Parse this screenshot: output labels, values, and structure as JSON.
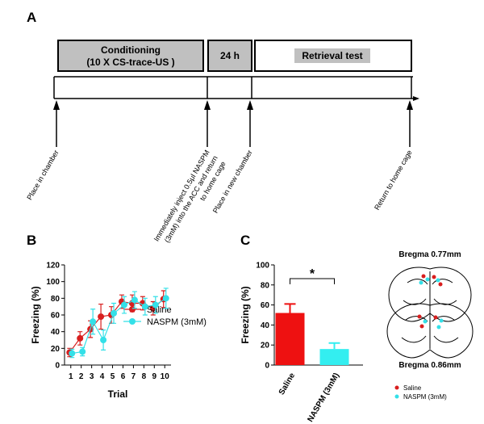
{
  "panel_labels": [
    "A",
    "B",
    "C"
  ],
  "timeline": {
    "blocks": [
      [
        "Conditioning",
        "(10 X CS-trace-US )"
      ],
      [
        "24 h"
      ],
      [
        "Retrieval test"
      ]
    ],
    "events": [
      [
        "Place in chamber"
      ],
      [
        "Immediately inject 0.5μl NASPM",
        "(3mM) into the ACC and return",
        "to home cage"
      ],
      [
        "Place in new chamber"
      ],
      [
        "Return to home cage"
      ]
    ]
  },
  "chart_data": [
    {
      "type": "line",
      "ylabel": "Freezing (%)",
      "xlabel": "Trial",
      "x": [
        1,
        2,
        3,
        4,
        5,
        6,
        7,
        8,
        9,
        10
      ],
      "xlim": [
        0.4,
        10.6
      ],
      "xticks": [
        1,
        2,
        3,
        4,
        5,
        6,
        7,
        8,
        9,
        10
      ],
      "ylim": [
        0,
        120
      ],
      "yticks": [
        0,
        20,
        40,
        60,
        80,
        100,
        120
      ],
      "series": [
        {
          "name": "Saline",
          "color": "#d81e1e",
          "values": [
            15,
            32,
            43,
            58,
            60,
            76,
            74,
            74,
            68,
            79
          ],
          "errors": [
            5,
            8,
            10,
            15,
            10,
            8,
            10,
            8,
            8,
            10
          ]
        },
        {
          "name": "NASPM (3mM)",
          "color": "#33e0e8",
          "values": [
            14,
            16,
            52,
            30,
            62,
            72,
            78,
            70,
            72,
            80
          ],
          "errors": [
            5,
            5,
            15,
            12,
            12,
            10,
            10,
            10,
            10,
            12
          ]
        }
      ]
    },
    {
      "type": "bar",
      "ylabel": "Freezing (%)",
      "categories": [
        "Saline",
        "NASPM (3mM)"
      ],
      "values": [
        52,
        16
      ],
      "errors": [
        9,
        6
      ],
      "colors": [
        "#ee1111",
        "#33eef0"
      ],
      "ylim": [
        0,
        100
      ],
      "yticks": [
        0,
        20,
        40,
        60,
        80,
        100
      ],
      "annotation": "*"
    }
  ],
  "brain": {
    "labels": [
      "Bregma  0.77mm",
      "Bregma  0.86mm"
    ],
    "legend": [
      "Saline",
      "NASPM (3mM)"
    ]
  }
}
